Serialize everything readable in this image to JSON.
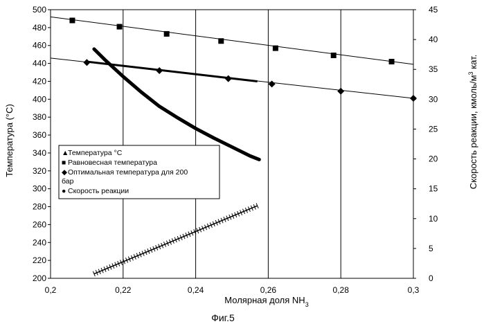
{
  "chart_data": {
    "type": "line",
    "x_axis": {
      "label_main": "Молярная доля NH",
      "label_sub": "3",
      "range": [
        0.2,
        0.3
      ],
      "tick_labels": [
        "0,2",
        "0,22",
        "0,24",
        "0,26",
        "0,28",
        "0,3"
      ]
    },
    "y_left": {
      "label": "Температура (°C)",
      "range": [
        200,
        500
      ],
      "tick_labels": [
        "200",
        "220",
        "240",
        "260",
        "280",
        "300",
        "320",
        "340",
        "360",
        "380",
        "400",
        "420",
        "440",
        "460",
        "480",
        "500"
      ]
    },
    "y_right": {
      "label_pre": "Скорость реакции, кмоль/м",
      "label_sup": "3",
      "label_post": " кат.",
      "range": [
        0,
        45
      ],
      "tick_labels": [
        "0",
        "5",
        "10",
        "15",
        "20",
        "25",
        "30",
        "35",
        "40",
        "45"
      ]
    },
    "grid": "vertical lines at each x tick",
    "legend_position": "inside-left",
    "series": [
      {
        "key": "temperature",
        "name": "Температура °С",
        "legend_marker": "▲",
        "axis": "left",
        "x": [
          0.212,
          0.257
        ],
        "y": [
          205,
          281
        ]
      },
      {
        "key": "equilibrium",
        "name": "Равновесная температура",
        "legend_marker": "■",
        "axis": "left",
        "x": [
          0.206,
          0.219,
          0.232,
          0.247,
          0.262,
          0.278,
          0.294
        ],
        "y": [
          488,
          481,
          473,
          465,
          457,
          449,
          442
        ],
        "line": {
          "x": [
            0.2,
            0.3
          ],
          "y": [
            492,
            439
          ]
        }
      },
      {
        "key": "optimal",
        "name": "Оптимальная температура для 200 бар",
        "legend_marker": "◆",
        "axis": "left",
        "x": [
          0.21,
          0.23,
          0.249,
          0.261,
          0.28,
          0.3
        ],
        "y": [
          441,
          432,
          423,
          417,
          409,
          401
        ],
        "line": {
          "x": [
            0.2,
            0.3
          ],
          "y": [
            446,
            401
          ]
        },
        "thick_segment": {
          "x": [
            0.21,
            0.257
          ],
          "y": [
            442,
            420
          ]
        }
      },
      {
        "key": "rate",
        "name": "Скорость реакции",
        "legend_marker": "●",
        "axis": "right",
        "x": [
          0.212,
          0.215,
          0.22,
          0.225,
          0.23,
          0.235,
          0.24,
          0.245,
          0.25,
          0.255,
          0.2575
        ],
        "y": [
          38.4,
          36.6,
          33.8,
          31.2,
          28.8,
          26.9,
          25.1,
          23.5,
          22.0,
          20.5,
          19.9
        ]
      }
    ],
    "legend_lines": [
      "Температура °С",
      "Равновесная температура",
      "Оптимальная температура для 200",
      "бар",
      "Скорость реакции"
    ]
  },
  "caption": "Фиг.5"
}
